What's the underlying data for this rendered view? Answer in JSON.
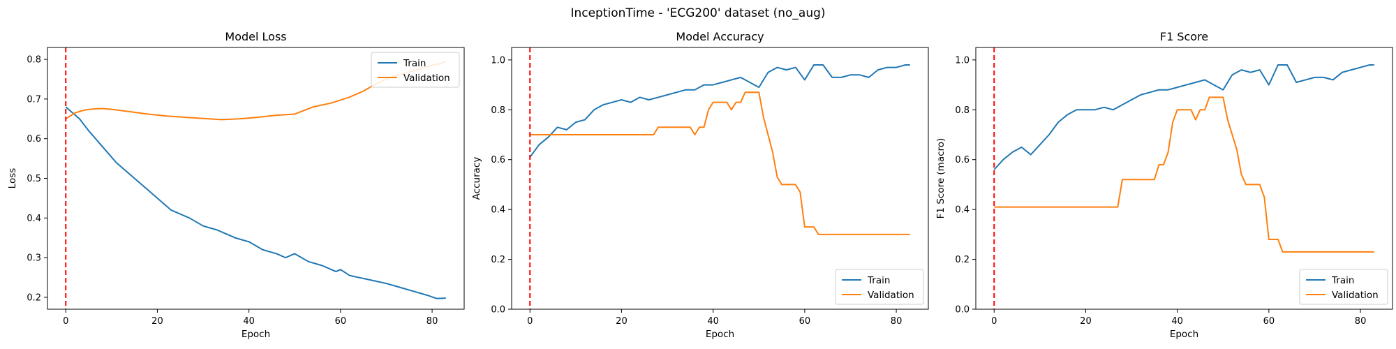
{
  "figure_title": "InceptionTime - 'ECG200' dataset (no_aug)",
  "colors": {
    "train": "#1f77b4",
    "validation": "#ff7f0e",
    "marker": "#ff0000"
  },
  "chart_data": [
    {
      "type": "line",
      "title": "Model Loss",
      "xlabel": "Epoch",
      "ylabel": "Loss",
      "xlim": [
        -4,
        87
      ],
      "ylim": [
        0.17,
        0.83
      ],
      "xticks": [
        0,
        20,
        40,
        60,
        80
      ],
      "yticks": [
        0.2,
        0.3,
        0.4,
        0.5,
        0.6,
        0.7,
        0.8
      ],
      "tick_decimals": 1,
      "legend_position": "upper right",
      "vline_x": 0,
      "series": [
        {
          "name": "Train",
          "x": [
            0,
            3,
            5,
            8,
            11,
            14,
            17,
            20,
            23,
            27,
            30,
            33,
            35,
            37,
            40,
            43,
            46,
            48,
            50,
            53,
            56,
            59,
            60,
            62,
            64,
            66,
            68,
            70,
            73,
            76,
            79,
            81,
            83
          ],
          "y": [
            0.68,
            0.65,
            0.62,
            0.58,
            0.54,
            0.51,
            0.48,
            0.45,
            0.42,
            0.4,
            0.38,
            0.37,
            0.36,
            0.35,
            0.34,
            0.32,
            0.31,
            0.3,
            0.31,
            0.29,
            0.28,
            0.265,
            0.27,
            0.255,
            0.25,
            0.245,
            0.24,
            0.235,
            0.225,
            0.215,
            0.205,
            0.197,
            0.198
          ]
        },
        {
          "name": "Validation",
          "x": [
            0,
            2,
            4,
            6,
            8,
            10,
            14,
            18,
            22,
            26,
            30,
            34,
            38,
            42,
            46,
            50,
            54,
            58,
            62,
            65,
            68,
            71,
            74,
            77,
            80,
            82,
            83
          ],
          "y": [
            0.65,
            0.665,
            0.672,
            0.675,
            0.676,
            0.674,
            0.668,
            0.662,
            0.657,
            0.654,
            0.651,
            0.648,
            0.65,
            0.654,
            0.659,
            0.662,
            0.68,
            0.69,
            0.705,
            0.72,
            0.74,
            0.755,
            0.765,
            0.775,
            0.785,
            0.79,
            0.795
          ]
        }
      ]
    },
    {
      "type": "line",
      "title": "Model Accuracy",
      "xlabel": "Epoch",
      "ylabel": "Accuracy",
      "xlim": [
        -4,
        87
      ],
      "ylim": [
        0,
        1.05
      ],
      "xticks": [
        0,
        20,
        40,
        60,
        80
      ],
      "yticks": [
        0.0,
        0.2,
        0.4,
        0.6,
        0.8,
        1.0
      ],
      "tick_decimals": 1,
      "legend_position": "lower right",
      "vline_x": 0,
      "series": [
        {
          "name": "Train",
          "x": [
            0,
            2,
            4,
            6,
            8,
            10,
            12,
            14,
            16,
            18,
            20,
            22,
            24,
            26,
            28,
            30,
            32,
            34,
            36,
            38,
            40,
            42,
            44,
            46,
            48,
            50,
            52,
            54,
            56,
            58,
            60,
            62,
            64,
            66,
            68,
            70,
            72,
            74,
            76,
            78,
            80,
            82,
            83
          ],
          "y": [
            0.61,
            0.66,
            0.69,
            0.73,
            0.72,
            0.75,
            0.76,
            0.8,
            0.82,
            0.83,
            0.84,
            0.83,
            0.85,
            0.84,
            0.85,
            0.86,
            0.87,
            0.88,
            0.88,
            0.9,
            0.9,
            0.91,
            0.92,
            0.93,
            0.91,
            0.89,
            0.95,
            0.97,
            0.96,
            0.97,
            0.92,
            0.98,
            0.98,
            0.93,
            0.93,
            0.94,
            0.94,
            0.93,
            0.96,
            0.97,
            0.97,
            0.98,
            0.98
          ]
        },
        {
          "name": "Validation",
          "x": [
            0,
            27,
            28,
            35,
            36,
            37,
            38,
            39,
            40,
            43,
            44,
            45,
            46,
            47,
            48,
            49,
            50,
            51,
            52,
            53,
            54,
            55,
            58,
            59,
            60,
            61,
            62,
            63,
            64,
            83
          ],
          "y": [
            0.7,
            0.7,
            0.73,
            0.73,
            0.7,
            0.73,
            0.73,
            0.8,
            0.83,
            0.83,
            0.8,
            0.83,
            0.83,
            0.87,
            0.87,
            0.87,
            0.87,
            0.77,
            0.7,
            0.63,
            0.53,
            0.5,
            0.5,
            0.47,
            0.33,
            0.33,
            0.33,
            0.3,
            0.3,
            0.3
          ]
        }
      ]
    },
    {
      "type": "line",
      "title": "F1 Score",
      "xlabel": "Epoch",
      "ylabel": "F1 Score (macro)",
      "xlim": [
        -4,
        87
      ],
      "ylim": [
        0,
        1.05
      ],
      "xticks": [
        0,
        20,
        40,
        60,
        80
      ],
      "yticks": [
        0.0,
        0.2,
        0.4,
        0.6,
        0.8,
        1.0
      ],
      "tick_decimals": 1,
      "legend_position": "lower right",
      "vline_x": 0,
      "series": [
        {
          "name": "Train",
          "x": [
            0,
            2,
            4,
            6,
            8,
            10,
            12,
            14,
            16,
            18,
            20,
            22,
            24,
            26,
            28,
            30,
            32,
            34,
            36,
            38,
            40,
            42,
            44,
            46,
            48,
            50,
            52,
            54,
            56,
            58,
            60,
            62,
            64,
            66,
            68,
            70,
            72,
            74,
            76,
            78,
            80,
            82,
            83
          ],
          "y": [
            0.56,
            0.6,
            0.63,
            0.65,
            0.62,
            0.66,
            0.7,
            0.75,
            0.78,
            0.8,
            0.8,
            0.8,
            0.81,
            0.8,
            0.82,
            0.84,
            0.86,
            0.87,
            0.88,
            0.88,
            0.89,
            0.9,
            0.91,
            0.92,
            0.9,
            0.88,
            0.94,
            0.96,
            0.95,
            0.96,
            0.9,
            0.98,
            0.98,
            0.91,
            0.92,
            0.93,
            0.93,
            0.92,
            0.95,
            0.96,
            0.97,
            0.98,
            0.98
          ]
        },
        {
          "name": "Validation",
          "x": [
            0,
            27,
            28,
            35,
            36,
            37,
            38,
            39,
            40,
            43,
            44,
            45,
            46,
            47,
            48,
            49,
            50,
            51,
            52,
            53,
            54,
            55,
            58,
            59,
            60,
            61,
            62,
            63,
            64,
            83
          ],
          "y": [
            0.41,
            0.41,
            0.52,
            0.52,
            0.58,
            0.58,
            0.63,
            0.75,
            0.8,
            0.8,
            0.76,
            0.8,
            0.8,
            0.85,
            0.85,
            0.85,
            0.85,
            0.76,
            0.7,
            0.64,
            0.54,
            0.5,
            0.5,
            0.45,
            0.28,
            0.28,
            0.28,
            0.23,
            0.23,
            0.23
          ]
        }
      ]
    }
  ]
}
